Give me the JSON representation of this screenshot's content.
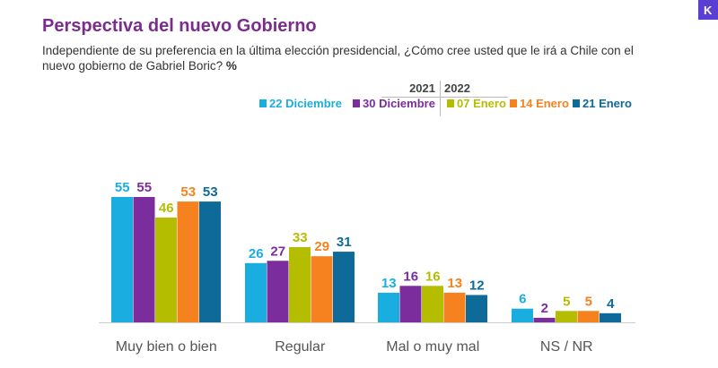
{
  "title": "Perspectiva del nuevo Gobierno",
  "subtitle": "Independiente de su preferencia en la última elección presidencial, ¿Cómo cree usted que le irá a Chile con el nuevo gobierno de Gabriel Boric?",
  "unit": "%",
  "logo_text": "K",
  "year_groups": [
    {
      "label": "2021",
      "series_count": 2
    },
    {
      "label": "2022",
      "series_count": 3
    }
  ],
  "chart_data": {
    "type": "bar",
    "categories": [
      "Muy bien o bien",
      "Regular",
      "Mal o muy mal",
      "NS / NR"
    ],
    "series": [
      {
        "name": "22 Diciembre",
        "color": "#1aaee0",
        "values": [
          55,
          26,
          13,
          6
        ]
      },
      {
        "name": "30 Diciembre",
        "color": "#7b2d9e",
        "values": [
          55,
          27,
          16,
          2
        ]
      },
      {
        "name": "07 Enero",
        "color": "#b5bd00",
        "values": [
          46,
          33,
          16,
          5
        ]
      },
      {
        "name": "14 Enero",
        "color": "#f5821f",
        "values": [
          53,
          29,
          13,
          5
        ]
      },
      {
        "name": "21 Enero",
        "color": "#0d6a99",
        "values": [
          53,
          31,
          12,
          4
        ]
      }
    ],
    "ylim": [
      0,
      55
    ],
    "grid": false,
    "legend_position": "top-right",
    "data_labels": true
  }
}
